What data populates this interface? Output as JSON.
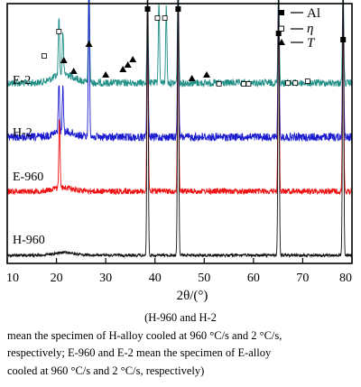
{
  "chart_data": {
    "type": "line",
    "title": "",
    "xlabel": "2θ/(°)",
    "ylabel": "",
    "xlim": [
      10,
      80
    ],
    "xticks": [
      "10",
      "20",
      "30",
      "40",
      "50",
      "60",
      "70",
      "80"
    ],
    "grid": false,
    "legend": {
      "placement": "top-right",
      "entries": [
        {
          "marker": "square-filled",
          "label": "Al"
        },
        {
          "marker": "square-open",
          "label": "η"
        },
        {
          "marker": "triangle-filled",
          "label": "T"
        }
      ]
    },
    "series": [
      {
        "name": "E-2",
        "color": "#1f8f86"
      },
      {
        "name": "H-2",
        "color": "#1a1acf"
      },
      {
        "name": "E-960",
        "color": "#ee1111"
      },
      {
        "name": "H-960",
        "color": "#111111"
      }
    ],
    "peaks_2theta": {
      "E-2": [
        [
          20.5,
          0.55
        ],
        [
          21.3,
          0.4
        ],
        [
          26.6,
          1.0
        ],
        [
          38.5,
          0.9
        ],
        [
          40.8,
          0.75
        ],
        [
          42.3,
          0.7
        ],
        [
          44.7,
          1.0
        ],
        [
          65.1,
          1.0
        ],
        [
          78.2,
          1.0
        ]
      ],
      "H-2": [
        [
          20.5,
          0.35
        ],
        [
          21.3,
          0.3
        ],
        [
          26.6,
          1.0
        ],
        [
          38.5,
          0.9
        ],
        [
          44.7,
          1.0
        ],
        [
          65.1,
          1.0
        ],
        [
          78.2,
          1.0
        ]
      ],
      "E-960": [
        [
          20.6,
          0.35
        ],
        [
          38.5,
          1.0
        ],
        [
          44.7,
          1.0
        ],
        [
          65.1,
          1.0
        ],
        [
          78.2,
          1.0
        ]
      ],
      "H-960": [
        [
          38.5,
          1.0
        ],
        [
          44.7,
          1.0
        ],
        [
          65.1,
          1.0
        ],
        [
          78.2,
          1.0
        ]
      ]
    },
    "markers_2theta": {
      "Al": [
        38.5,
        44.7,
        65.1,
        78.2
      ],
      "eta": [
        17.5,
        20.5,
        40.5,
        42.0,
        53.0,
        58.0,
        59.0,
        67.0,
        68.5,
        71.0
      ],
      "T": [
        21.5,
        23.5,
        26.6,
        30.0,
        33.5,
        34.5,
        35.5,
        47.5,
        50.5
      ]
    }
  },
  "caption": {
    "line1": "(H-960 and H-2",
    "line2": "mean the specimen of H-alloy cooled at 960 °C/s and 2 °C/s,",
    "line3": "respectively; E-960 and E-2 mean the specimen of E-alloy",
    "line4": "cooled at 960 °C/s and 2 °C/s, respectively)"
  }
}
